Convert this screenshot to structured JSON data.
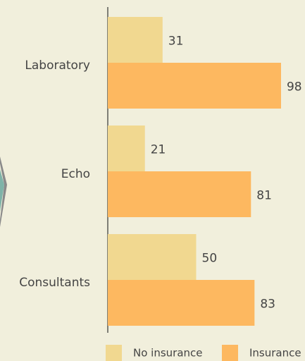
{
  "chart_data": {
    "type": "bar",
    "orientation": "horizontal",
    "categories": [
      "Laboratory",
      "Echo",
      "Consultants"
    ],
    "series": [
      {
        "name": "No insurance",
        "color": "#f1d890",
        "values": [
          31,
          21,
          50
        ]
      },
      {
        "name": "Insurance",
        "color": "#fdb860",
        "values": [
          98,
          81,
          83
        ]
      }
    ]
  }
}
